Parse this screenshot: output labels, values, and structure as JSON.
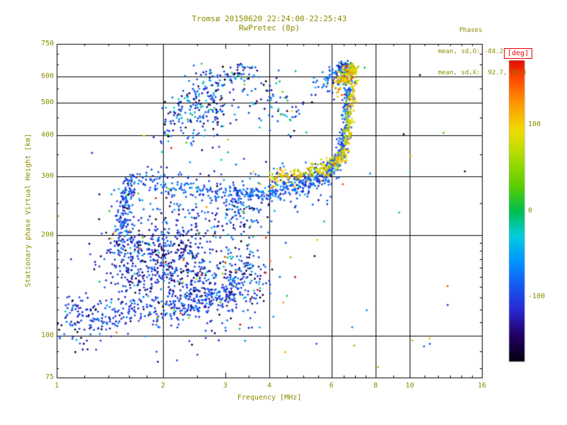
{
  "title": {
    "line1": "Tromsø 20150620 22:24:00-22:25:43",
    "line2": "RwPretec (8p)"
  },
  "stats": {
    "header": "Phases",
    "line_o": "mean, sd,O: -84.2, 17.4",
    "line_x": "mean, sd,X:  92.7, 23.4"
  },
  "colors": {
    "text": "#8b8b00",
    "axis": "#000000",
    "deg_label": "#ee0000",
    "background": "#ffffff"
  },
  "colorbar": {
    "title": "[deg]",
    "ticks": [
      {
        "value": 100,
        "label": "100"
      },
      {
        "value": 0,
        "label": "0"
      },
      {
        "value": -100,
        "label": "-100"
      }
    ],
    "value_range": [
      -175,
      175
    ],
    "stops": [
      [
        0.0,
        0,
        0,
        0
      ],
      [
        0.1,
        34,
        0,
        102
      ],
      [
        0.18,
        40,
        40,
        210
      ],
      [
        0.26,
        20,
        90,
        240
      ],
      [
        0.34,
        0,
        150,
        255
      ],
      [
        0.42,
        0,
        205,
        220
      ],
      [
        0.5,
        0,
        190,
        80
      ],
      [
        0.58,
        90,
        205,
        0
      ],
      [
        0.68,
        175,
        220,
        0
      ],
      [
        0.76,
        240,
        220,
        0
      ],
      [
        0.85,
        255,
        150,
        0
      ],
      [
        0.93,
        255,
        70,
        0
      ],
      [
        1.0,
        220,
        0,
        0
      ]
    ]
  },
  "chart_data": {
    "type": "scatter",
    "title": "Tromsø 20150620 22:24:00-22:25:43  RwPretec (8p)",
    "xlabel": "Frequency [MHz]",
    "ylabel": "Stationary phase Virtual Height [km]",
    "x_scale": "log",
    "y_scale": "log",
    "xlim": [
      1,
      16
    ],
    "ylim": [
      75,
      750
    ],
    "x_ticks": [
      1,
      2,
      3,
      4,
      6,
      8,
      10,
      16
    ],
    "y_ticks": [
      75,
      100,
      200,
      300,
      400,
      500,
      600,
      750
    ],
    "x_gridlines": [
      2,
      4,
      6,
      8,
      10
    ],
    "y_gridlines": [
      100,
      200,
      300,
      400,
      500,
      600
    ],
    "x_minor_ticks": [
      1.2,
      1.4,
      1.6,
      1.8,
      2.5,
      3.5,
      4.5,
      5,
      5.5,
      6.5,
      7,
      7.5,
      9,
      11,
      12,
      13,
      14,
      15
    ],
    "y_minor_ticks": [
      80,
      90,
      110,
      120,
      130,
      140,
      150,
      160,
      170,
      180,
      190,
      250,
      350,
      450,
      550,
      650,
      700
    ],
    "color_variable": "phase [deg]",
    "seed": 42,
    "traces": [
      {
        "name": "e-region-band",
        "n": 380,
        "path": [
          [
            1.05,
            118
          ],
          [
            1.4,
            114
          ],
          [
            1.9,
            118
          ],
          [
            2.4,
            124
          ],
          [
            2.9,
            131
          ],
          [
            3.3,
            139
          ]
        ],
        "f_jitter": 0.035,
        "h_jitter": 7,
        "phase_mean": -100,
        "phase_sd": 22
      },
      {
        "name": "lower-left-sparse",
        "n": 45,
        "path": [
          [
            1.0,
            100
          ],
          [
            1.25,
            108
          ]
        ],
        "f_jitter": 0.08,
        "h_jitter": 10,
        "phase_mean": -110,
        "phase_sd": 45
      },
      {
        "name": "diffuse-cloud",
        "n": 620,
        "path": [
          [
            1.45,
            170
          ],
          [
            1.7,
            167
          ],
          [
            2.0,
            162
          ],
          [
            2.3,
            157
          ],
          [
            2.6,
            152
          ]
        ],
        "f_jitter": 0.09,
        "h_jitter": 26,
        "phase_mean": -110,
        "phase_sd": 30
      },
      {
        "name": "diffuse-cloud-right",
        "n": 170,
        "path": [
          [
            2.7,
            155
          ],
          [
            3.1,
            150
          ],
          [
            3.5,
            148
          ],
          [
            3.8,
            150
          ]
        ],
        "f_jitter": 0.07,
        "h_jitter": 20,
        "phase_mean": -105,
        "phase_sd": 35
      },
      {
        "name": "vertical-branch",
        "n": 150,
        "path": [
          [
            1.52,
            200
          ],
          [
            1.55,
            230
          ],
          [
            1.58,
            260
          ],
          [
            1.62,
            290
          ]
        ],
        "f_jitter": 0.03,
        "h_jitter": 12,
        "phase_mean": -95,
        "phase_sd": 25
      },
      {
        "name": "mid-sparse",
        "n": 130,
        "path": [
          [
            2.0,
            235
          ],
          [
            2.6,
            228
          ],
          [
            3.2,
            225
          ],
          [
            3.7,
            230
          ]
        ],
        "f_jitter": 0.08,
        "h_jitter": 18,
        "phase_mean": -100,
        "phase_sd": 35
      },
      {
        "name": "f-trace-o",
        "n": 750,
        "path": [
          [
            1.65,
            300
          ],
          [
            2.0,
            285
          ],
          [
            2.5,
            273
          ],
          [
            3.0,
            266
          ],
          [
            3.5,
            264
          ],
          [
            4.0,
            270
          ],
          [
            4.5,
            279
          ],
          [
            5.0,
            289
          ],
          [
            5.4,
            297
          ],
          [
            5.8,
            308
          ],
          [
            6.1,
            320
          ],
          [
            6.3,
            338
          ],
          [
            6.45,
            365
          ],
          [
            6.55,
            410
          ],
          [
            6.62,
            470
          ],
          [
            6.67,
            540
          ],
          [
            6.7,
            610
          ],
          [
            6.72,
            650
          ]
        ],
        "f_jitter": 0.018,
        "h_jitter": 11,
        "phase_mean": -85,
        "phase_sd": 18
      },
      {
        "name": "f-trace-o-diffuse",
        "n": 150,
        "path": [
          [
            2.0,
            285
          ],
          [
            3.0,
            266
          ],
          [
            4.0,
            270
          ],
          [
            5.0,
            289
          ],
          [
            5.8,
            308
          ]
        ],
        "f_jitter": 0.03,
        "h_jitter": 28,
        "phase_mean": -90,
        "phase_sd": 30
      },
      {
        "name": "f-trace-x",
        "n": 380,
        "path": [
          [
            3.9,
            296
          ],
          [
            4.4,
            300
          ],
          [
            4.9,
            305
          ],
          [
            5.4,
            312
          ],
          [
            5.8,
            320
          ],
          [
            6.2,
            332
          ],
          [
            6.5,
            352
          ],
          [
            6.65,
            390
          ],
          [
            6.75,
            440
          ],
          [
            6.82,
            500
          ],
          [
            6.87,
            560
          ],
          [
            6.9,
            615
          ],
          [
            6.92,
            645
          ]
        ],
        "f_jitter": 0.015,
        "h_jitter": 9,
        "phase_mean": 92,
        "phase_sd": 23
      },
      {
        "name": "upper-arc",
        "n": 140,
        "path": [
          [
            1.95,
            380
          ],
          [
            2.1,
            440
          ],
          [
            2.3,
            510
          ],
          [
            2.55,
            570
          ],
          [
            2.9,
            605
          ],
          [
            3.3,
            620
          ],
          [
            3.7,
            615
          ]
        ],
        "f_jitter": 0.04,
        "h_jitter": 28,
        "phase_mean": -90,
        "phase_sd": 45
      },
      {
        "name": "upper-cloud",
        "n": 160,
        "path": [
          [
            2.3,
            440
          ],
          [
            2.6,
            470
          ],
          [
            2.9,
            500
          ]
        ],
        "f_jitter": 0.09,
        "h_jitter": 45,
        "phase_mean": -95,
        "phase_sd": 45
      },
      {
        "name": "upper-mid-sparse",
        "n": 70,
        "path": [
          [
            3.6,
            560
          ],
          [
            4.0,
            520
          ],
          [
            4.4,
            480
          ],
          [
            4.8,
            470
          ]
        ],
        "f_jitter": 0.06,
        "h_jitter": 40,
        "phase_mean": -80,
        "phase_sd": 60
      },
      {
        "name": "cusp-top-o",
        "n": 90,
        "path": [
          [
            5.6,
            560
          ],
          [
            6.0,
            590
          ],
          [
            6.3,
            615
          ],
          [
            6.5,
            630
          ]
        ],
        "f_jitter": 0.03,
        "h_jitter": 25,
        "phase_mean": -85,
        "phase_sd": 30
      },
      {
        "name": "cusp-top-x",
        "n": 110,
        "path": [
          [
            6.3,
            560
          ],
          [
            6.55,
            600
          ],
          [
            6.75,
            630
          ]
        ],
        "f_jitter": 0.02,
        "h_jitter": 22,
        "phase_mean": 95,
        "phase_sd": 28
      },
      {
        "name": "color-sprinkle",
        "n": 60,
        "uniform_f": [
          1.3,
          4.2
        ],
        "uniform_h": [
          100,
          320
        ],
        "phase_uniform": [
          -180,
          180
        ]
      },
      {
        "name": "outliers",
        "n": 55,
        "uniform_f": [
          1.0,
          14.5
        ],
        "uniform_h": [
          80,
          700
        ],
        "phase_uniform": [
          -180,
          180
        ]
      }
    ]
  }
}
